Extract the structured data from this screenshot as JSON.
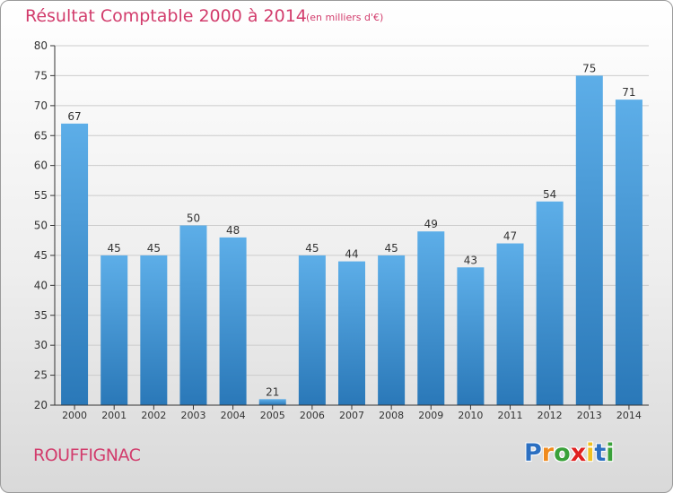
{
  "header": {
    "title": "Résultat Comptable 2000 à 2014",
    "subtitle": "(en milliers d'€)"
  },
  "footer": {
    "commune": "ROUFFIGNAC",
    "logo": "Proxiti",
    "logo_letters": [
      {
        "ch": "P",
        "color": "#2b6fc1"
      },
      {
        "ch": "r",
        "color": "#f08a1c"
      },
      {
        "ch": "o",
        "color": "#3aa13a"
      },
      {
        "ch": "x",
        "color": "#e02020"
      },
      {
        "ch": "i",
        "color": "#f0c020"
      },
      {
        "ch": "t",
        "color": "#2b6fc1"
      },
      {
        "ch": "i",
        "color": "#3aa13a"
      }
    ]
  },
  "colors": {
    "accent": "#d23c6c",
    "bar_top": "#5daee8",
    "bar_bottom": "#2a78b8",
    "axis": "#333333",
    "grid": "#cccccc"
  },
  "chart_data": {
    "type": "bar",
    "categories": [
      "2000",
      "2001",
      "2002",
      "2003",
      "2004",
      "2005",
      "2006",
      "2007",
      "2008",
      "2009",
      "2010",
      "2011",
      "2012",
      "2013",
      "2014"
    ],
    "values": [
      67,
      45,
      45,
      50,
      48,
      21,
      45,
      44,
      45,
      49,
      43,
      47,
      54,
      75,
      71
    ],
    "ylim": [
      20,
      80
    ],
    "yticks": [
      20,
      25,
      30,
      35,
      40,
      45,
      50,
      55,
      60,
      65,
      70,
      75,
      80
    ],
    "grid": true,
    "data_labels": true
  }
}
